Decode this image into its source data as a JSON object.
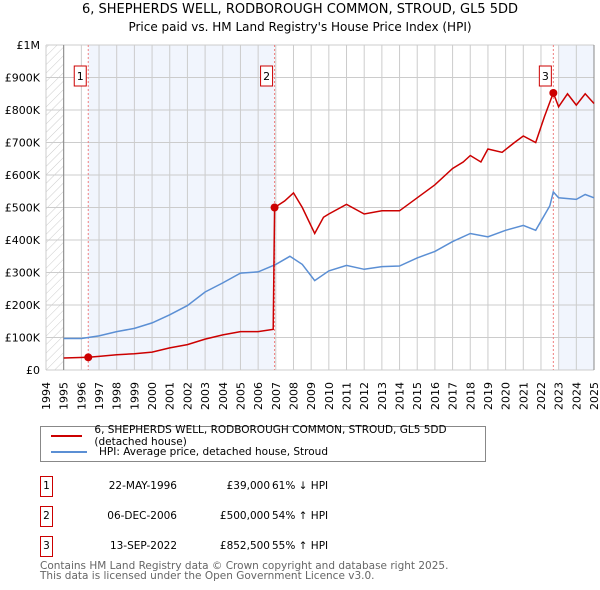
{
  "title": "6, SHEPHERDS WELL, RODBOROUGH COMMON, STROUD, GL5 5DD",
  "subtitle": "Price paid vs. HM Land Registry's House Price Index (HPI)",
  "chart_data": {
    "type": "line",
    "xlim": [
      1994,
      2025
    ],
    "ylim": [
      0,
      1000000
    ],
    "x_ticks": [
      "1994",
      "1995",
      "1996",
      "1997",
      "1998",
      "1999",
      "2000",
      "2001",
      "2002",
      "2003",
      "2004",
      "2005",
      "2006",
      "2007",
      "2008",
      "2009",
      "2010",
      "2011",
      "2012",
      "2013",
      "2014",
      "2015",
      "2016",
      "2017",
      "2018",
      "2019",
      "2020",
      "2021",
      "2022",
      "2023",
      "2024",
      "2025"
    ],
    "y_ticks": [
      {
        "v": 0,
        "label": "£0"
      },
      {
        "v": 100000,
        "label": "£100K"
      },
      {
        "v": 200000,
        "label": "£200K"
      },
      {
        "v": 300000,
        "label": "£300K"
      },
      {
        "v": 400000,
        "label": "£400K"
      },
      {
        "v": 500000,
        "label": "£500K"
      },
      {
        "v": 600000,
        "label": "£600K"
      },
      {
        "v": 700000,
        "label": "£700K"
      },
      {
        "v": 800000,
        "label": "£800K"
      },
      {
        "v": 900000,
        "label": "£900K"
      },
      {
        "v": 1000000,
        "label": "£1M"
      }
    ],
    "series": [
      {
        "name": "6, SHEPHERDS WELL, RODBOROUGH COMMON, STROUD, GL5 5DD (detached house)",
        "color": "#cc0000",
        "points": [
          [
            1995,
            37000
          ],
          [
            1996.4,
            39000
          ],
          [
            1997,
            42000
          ],
          [
            1998,
            47000
          ],
          [
            1999,
            50000
          ],
          [
            2000,
            55000
          ],
          [
            2001,
            68000
          ],
          [
            2002,
            78000
          ],
          [
            2003,
            95000
          ],
          [
            2004,
            108000
          ],
          [
            2005,
            118000
          ],
          [
            2006,
            118000
          ],
          [
            2006.85,
            125000
          ],
          [
            2006.93,
            500000
          ],
          [
            2007.5,
            520000
          ],
          [
            2008,
            545000
          ],
          [
            2008.5,
            500000
          ],
          [
            2009.2,
            420000
          ],
          [
            2009.7,
            470000
          ],
          [
            2010,
            480000
          ],
          [
            2011,
            510000
          ],
          [
            2012,
            480000
          ],
          [
            2013,
            490000
          ],
          [
            2014,
            490000
          ],
          [
            2015,
            530000
          ],
          [
            2016,
            570000
          ],
          [
            2017,
            620000
          ],
          [
            2017.6,
            640000
          ],
          [
            2018,
            660000
          ],
          [
            2018.6,
            640000
          ],
          [
            2019,
            680000
          ],
          [
            2019.8,
            670000
          ],
          [
            2020.5,
            700000
          ],
          [
            2021,
            720000
          ],
          [
            2021.7,
            700000
          ],
          [
            2022.2,
            780000
          ],
          [
            2022.7,
            852500
          ],
          [
            2023,
            810000
          ],
          [
            2023.5,
            850000
          ],
          [
            2024,
            815000
          ],
          [
            2024.5,
            850000
          ],
          [
            2025,
            820000
          ]
        ]
      },
      {
        "name": "HPI: Average price, detached house, Stroud",
        "color": "#5b8fd4",
        "points": [
          [
            1995,
            97000
          ],
          [
            1996,
            97000
          ],
          [
            1997,
            105000
          ],
          [
            1998,
            118000
          ],
          [
            1999,
            128000
          ],
          [
            2000,
            145000
          ],
          [
            2001,
            170000
          ],
          [
            2002,
            198000
          ],
          [
            2003,
            240000
          ],
          [
            2004,
            268000
          ],
          [
            2005,
            298000
          ],
          [
            2006,
            302000
          ],
          [
            2007,
            325000
          ],
          [
            2007.8,
            350000
          ],
          [
            2008.5,
            325000
          ],
          [
            2009.2,
            275000
          ],
          [
            2010,
            305000
          ],
          [
            2011,
            322000
          ],
          [
            2012,
            310000
          ],
          [
            2013,
            318000
          ],
          [
            2014,
            320000
          ],
          [
            2015,
            345000
          ],
          [
            2016,
            365000
          ],
          [
            2017,
            395000
          ],
          [
            2018,
            420000
          ],
          [
            2019,
            410000
          ],
          [
            2020,
            430000
          ],
          [
            2021,
            445000
          ],
          [
            2021.7,
            430000
          ],
          [
            2022.5,
            505000
          ],
          [
            2022.7,
            548000
          ],
          [
            2023,
            530000
          ],
          [
            2024,
            525000
          ],
          [
            2024.5,
            540000
          ],
          [
            2025,
            530000
          ]
        ]
      }
    ],
    "sales": [
      {
        "label": "1",
        "x": 1996.39,
        "y": 39000
      },
      {
        "label": "2",
        "x": 2006.93,
        "y": 500000
      },
      {
        "label": "3",
        "x": 2022.7,
        "y": 852500
      }
    ]
  },
  "legend": [
    "6, SHEPHERDS WELL, RODBOROUGH COMMON, STROUD, GL5 5DD (detached house)",
    "HPI: Average price, detached house, Stroud"
  ],
  "transactions": [
    {
      "num": "1",
      "date": "22-MAY-1996",
      "price": "£39,000",
      "hpi": "61% ↓ HPI"
    },
    {
      "num": "2",
      "date": "06-DEC-2006",
      "price": "£500,000",
      "hpi": "54% ↑ HPI"
    },
    {
      "num": "3",
      "date": "13-SEP-2022",
      "price": "£852,500",
      "hpi": "55% ↑ HPI"
    }
  ],
  "footer": [
    "Contains HM Land Registry data © Crown copyright and database right 2025.",
    "This data is licensed under the Open Government Licence v3.0."
  ]
}
